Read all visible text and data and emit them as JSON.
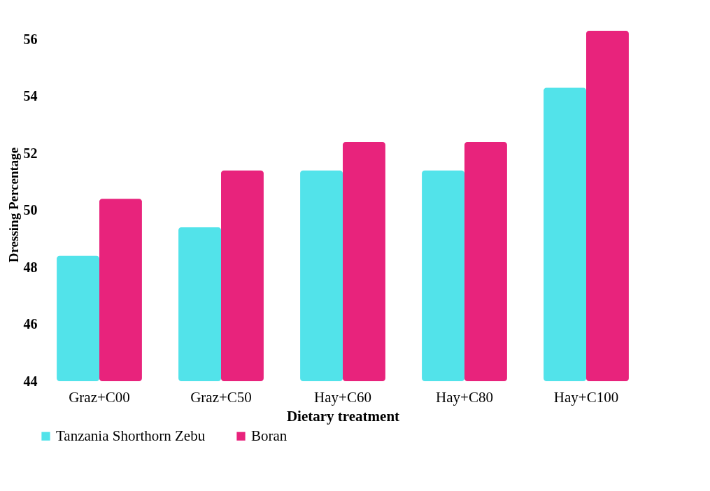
{
  "chart_data": {
    "type": "bar",
    "xlabel": "Dietary treatment",
    "ylabel": "Dressing Percentage",
    "categories": [
      "Graz+C00",
      "Graz+C50",
      "Hay+C60",
      "Hay+C80",
      "Hay+C100"
    ],
    "series": [
      {
        "name": "Tanzania Shorthorn Zebu",
        "color": "#52e3ea",
        "values": [
          48.4,
          49.4,
          51.4,
          51.4,
          54.3
        ]
      },
      {
        "name": "Boran",
        "color": "#e8237c",
        "values": [
          50.4,
          51.4,
          52.4,
          52.4,
          56.3
        ]
      }
    ],
    "ylim": [
      44,
      56.4
    ],
    "yticks": [
      44,
      46,
      48,
      50,
      52,
      54,
      56
    ],
    "grid": false,
    "legend": "bottom"
  }
}
